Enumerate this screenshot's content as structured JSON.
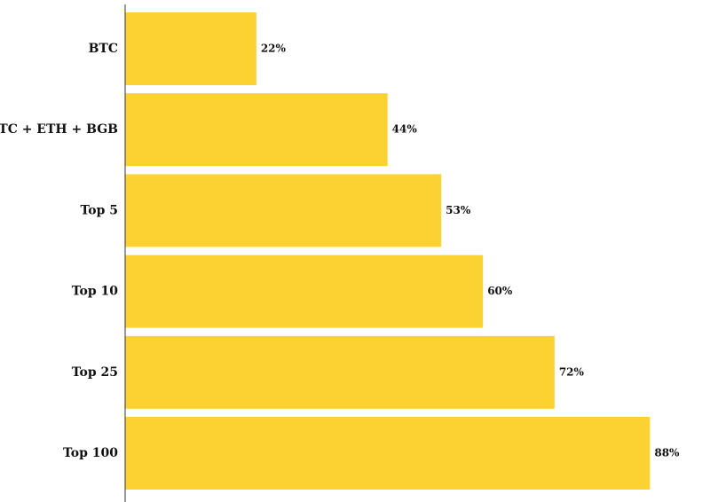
{
  "chart_data": {
    "type": "bar",
    "orientation": "horizontal",
    "categories": [
      "BTC",
      "BTC + ETH + BGB",
      "Top 5",
      "Top 10",
      "Top 25",
      "Top 100"
    ],
    "values": [
      22,
      44,
      53,
      60,
      72,
      88
    ],
    "value_labels": [
      "22%",
      "44%",
      "53%",
      "60%",
      "72%",
      "88%"
    ],
    "title": "",
    "xlabel": "",
    "ylabel": "",
    "xlim": [
      0,
      100
    ],
    "grid": false,
    "bar_color": "#FCD232"
  }
}
